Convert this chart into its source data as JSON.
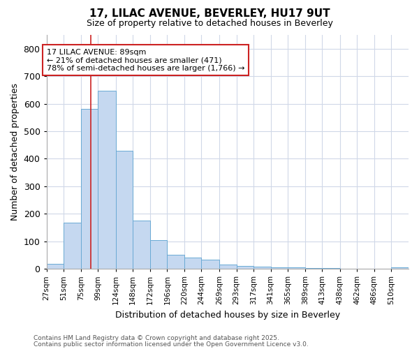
{
  "title1": "17, LILAC AVENUE, BEVERLEY, HU17 9UT",
  "title2": "Size of property relative to detached houses in Beverley",
  "xlabel": "Distribution of detached houses by size in Beverley",
  "ylabel": "Number of detached properties",
  "bin_edges": [
    27,
    51,
    75,
    99,
    124,
    148,
    172,
    196,
    220,
    244,
    269,
    293,
    317,
    341,
    365,
    389,
    413,
    438,
    462,
    486,
    510
  ],
  "bar_heights": [
    17,
    168,
    580,
    648,
    430,
    174,
    103,
    52,
    40,
    33,
    14,
    9,
    8,
    5,
    4,
    2,
    2,
    1,
    1,
    1,
    5
  ],
  "bar_color": "#c5d8f0",
  "bar_edge_color": "#6aaad4",
  "property_size": 89,
  "vline_color": "#cc2222",
  "annotation_text": "17 LILAC AVENUE: 89sqm\n← 21% of detached houses are smaller (471)\n78% of semi-detached houses are larger (1,766) →",
  "annotation_box_facecolor": "#ffffff",
  "annotation_border_color": "#cc2222",
  "footer1": "Contains HM Land Registry data © Crown copyright and database right 2025.",
  "footer2": "Contains public sector information licensed under the Open Government Licence v3.0.",
  "ylim": [
    0,
    850
  ],
  "background_color": "#ffffff",
  "plot_background": "#ffffff",
  "grid_color": "#d0d8e8",
  "yticks": [
    0,
    100,
    200,
    300,
    400,
    500,
    600,
    700,
    800
  ],
  "tick_labels": [
    "27sqm",
    "51sqm",
    "75sqm",
    "99sqm",
    "124sqm",
    "148sqm",
    "172sqm",
    "196sqm",
    "220sqm",
    "244sqm",
    "269sqm",
    "293sqm",
    "317sqm",
    "341sqm",
    "365sqm",
    "389sqm",
    "413sqm",
    "438sqm",
    "462sqm",
    "486sqm",
    "510sqm"
  ]
}
